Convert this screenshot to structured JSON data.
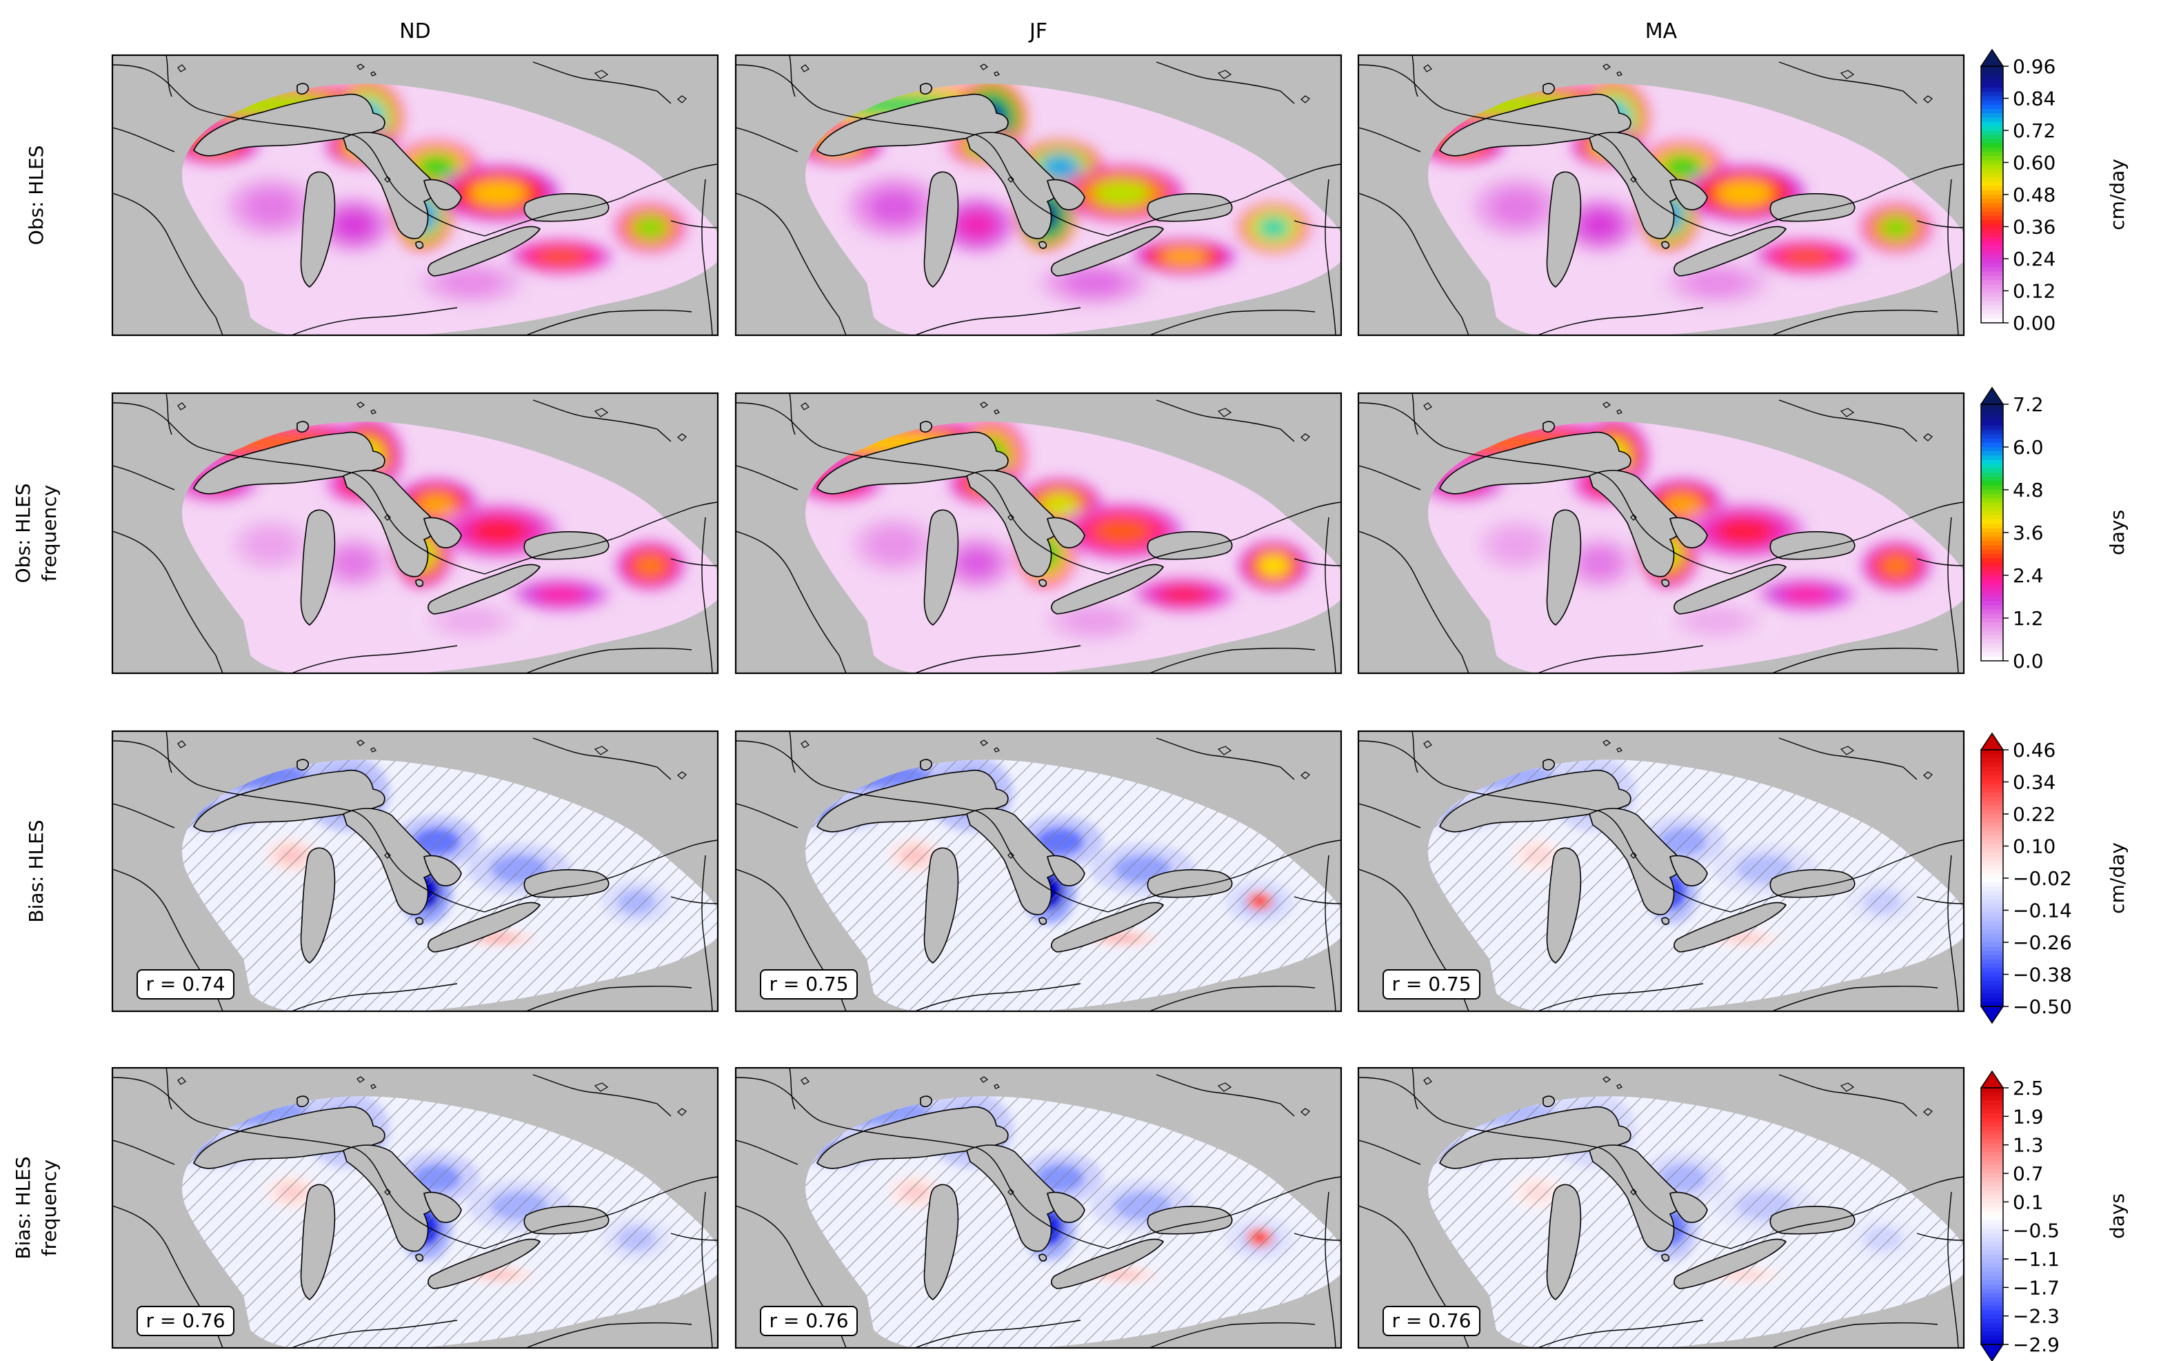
{
  "columns": [
    "ND",
    "JF",
    "MA"
  ],
  "rows": [
    {
      "label": [
        "Obs: HLES"
      ],
      "kind": "obs",
      "variable": "amount",
      "r": []
    },
    {
      "label": [
        "Obs: HLES",
        "frequency"
      ],
      "kind": "obs",
      "variable": "frequency",
      "r": []
    },
    {
      "label": [
        "Bias: HLES"
      ],
      "kind": "bias",
      "variable": "amount",
      "r": [
        "r = 0.74",
        "r = 0.75",
        "r = 0.75"
      ]
    },
    {
      "label": [
        "Bias: HLES",
        "frequency"
      ],
      "kind": "bias",
      "variable": "frequency",
      "r": [
        "r = 0.76",
        "r = 0.76",
        "r = 0.76"
      ]
    }
  ],
  "colorbars": [
    {
      "unit": "cm/day",
      "ticks": [
        "0.96",
        "0.84",
        "0.72",
        "0.60",
        "0.48",
        "0.36",
        "0.24",
        "0.12",
        "0.00"
      ],
      "min": 0.0,
      "max": 0.96,
      "extend": "max",
      "cmap": "obs"
    },
    {
      "unit": "days",
      "ticks": [
        "7.2",
        "6.0",
        "4.8",
        "3.6",
        "2.4",
        "1.2",
        "0.0"
      ],
      "min": 0.0,
      "max": 7.68,
      "extend": "max",
      "cmap": "obs"
    },
    {
      "unit": "cm/day",
      "ticks": [
        "0.46",
        "0.34",
        "0.22",
        "0.10",
        "−0.02",
        "−0.14",
        "−0.26",
        "−0.38",
        "−0.50"
      ],
      "min": -0.5,
      "max": 0.46,
      "extend": "both",
      "cmap": "bias"
    },
    {
      "unit": "days",
      "ticks": [
        "2.5",
        "1.9",
        "1.3",
        "0.7",
        "0.1",
        "−0.5",
        "−1.1",
        "−1.7",
        "−2.3",
        "−2.9"
      ],
      "min": -2.9,
      "max": 2.5,
      "extend": "both",
      "cmap": "bias"
    }
  ],
  "colors": {
    "land_background": "#bdbdbd",
    "lake": "#bdbdbd",
    "obs_scale": [
      "#ffffff",
      "#f2c8f2",
      "#e88ae8",
      "#d43ee0",
      "#ff1aa0",
      "#ff2020",
      "#ff8000",
      "#ffe000",
      "#a8e000",
      "#20d020",
      "#00d8d8",
      "#1060ff",
      "#1010a0",
      "#0a1a60"
    ],
    "bias_scale": [
      "#0000cc",
      "#3344ff",
      "#8899ff",
      "#c8ccff",
      "#ffffff",
      "#ffc8c8",
      "#ff8080",
      "#ff3030",
      "#cc0000"
    ]
  }
}
